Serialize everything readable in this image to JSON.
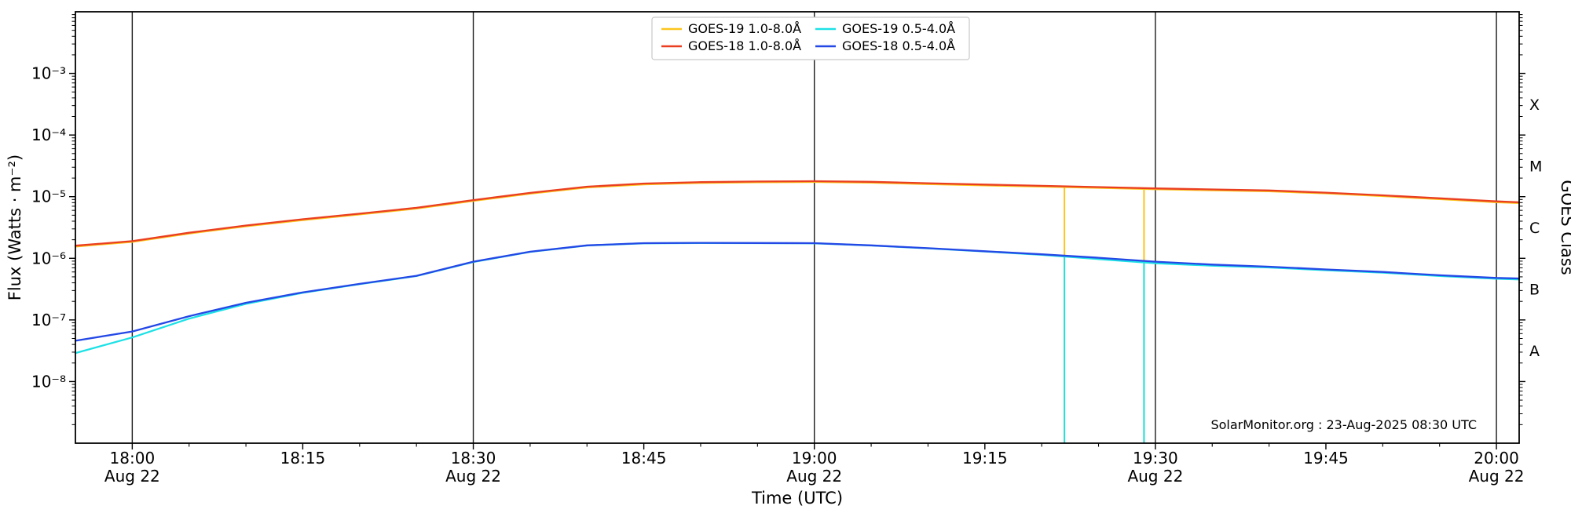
{
  "watermark": "SolarMonitor.org : 23-Aug-2025 08:30 UTC",
  "chart_data": {
    "type": "line",
    "xlabel": "Time (UTC)",
    "ylabel": "Flux (Watts · m⁻²)",
    "ylabel_right": "GOES Class",
    "x_unit": "minutes relative to 18:00 UTC, Aug 22",
    "x_domain": [
      -5,
      122
    ],
    "y_log_domain": [
      -9,
      -2
    ],
    "grid": "vertical lines at 30-minute major ticks",
    "legend_position": "top-center",
    "x_ticks": [
      {
        "t": 0,
        "label": "18:00",
        "date": "Aug 22",
        "grid": true
      },
      {
        "t": 15,
        "label": "18:15"
      },
      {
        "t": 30,
        "label": "18:30",
        "date": "Aug 22",
        "grid": true
      },
      {
        "t": 45,
        "label": "18:45"
      },
      {
        "t": 60,
        "label": "19:00",
        "date": "Aug 22",
        "grid": true
      },
      {
        "t": 75,
        "label": "19:15"
      },
      {
        "t": 90,
        "label": "19:30",
        "date": "Aug 22",
        "grid": true
      },
      {
        "t": 105,
        "label": "19:45"
      },
      {
        "t": 120,
        "label": "20:00",
        "date": "Aug 22",
        "grid": true
      }
    ],
    "y_ticks": [
      {
        "exp": -3,
        "label": "10⁻³"
      },
      {
        "exp": -4,
        "label": "10⁻⁴"
      },
      {
        "exp": -5,
        "label": "10⁻⁵"
      },
      {
        "exp": -6,
        "label": "10⁻⁶"
      },
      {
        "exp": -7,
        "label": "10⁻⁷"
      },
      {
        "exp": -8,
        "label": "10⁻⁸"
      }
    ],
    "goes_classes": [
      {
        "label": "X",
        "log": -3.5
      },
      {
        "label": "M",
        "log": -4.5
      },
      {
        "label": "C",
        "log": -5.5
      },
      {
        "label": "B",
        "log": -6.5
      },
      {
        "label": "A",
        "log": -7.5
      }
    ],
    "series": [
      {
        "id": "goes-19-long",
        "name": "GOES-19 1.0-8.0Å",
        "color": "#fcc51d",
        "points": [
          [
            -5,
            1.55e-06
          ],
          [
            0,
            1.85e-06
          ],
          [
            5,
            2.52e-06
          ],
          [
            10,
            3.3e-06
          ],
          [
            15,
            4.17e-06
          ],
          [
            20,
            5.14e-06
          ],
          [
            25,
            6.4e-06
          ],
          [
            30,
            8.54e-06
          ],
          [
            35,
            1.12e-05
          ],
          [
            40,
            1.41e-05
          ],
          [
            45,
            1.58e-05
          ],
          [
            50,
            1.67e-05
          ],
          [
            55,
            1.71e-05
          ],
          [
            60,
            1.73e-05
          ],
          [
            65,
            1.69e-05
          ],
          [
            70,
            1.6e-05
          ],
          [
            75,
            1.52e-05
          ],
          [
            80,
            1.46e-05
          ],
          [
            85,
            1.39e-05
          ],
          [
            90,
            1.32e-05
          ],
          [
            95,
            1.27e-05
          ],
          [
            100,
            1.22e-05
          ],
          [
            105,
            1.13e-05
          ],
          [
            110,
            1.02e-05
          ],
          [
            115,
            9.1e-06
          ],
          [
            120,
            8.1e-06
          ],
          [
            122,
            7.9e-06
          ]
        ]
      },
      {
        "id": "goes-18-long",
        "name": "GOES-18 1.0-8.0Å",
        "color": "#ea3e20",
        "points": [
          [
            -5,
            1.6e-06
          ],
          [
            0,
            1.9e-06
          ],
          [
            5,
            2.6e-06
          ],
          [
            10,
            3.4e-06
          ],
          [
            15,
            4.3e-06
          ],
          [
            20,
            5.3e-06
          ],
          [
            25,
            6.6e-06
          ],
          [
            30,
            8.8e-06
          ],
          [
            35,
            1.15e-05
          ],
          [
            40,
            1.45e-05
          ],
          [
            45,
            1.63e-05
          ],
          [
            50,
            1.72e-05
          ],
          [
            55,
            1.76e-05
          ],
          [
            60,
            1.78e-05
          ],
          [
            65,
            1.74e-05
          ],
          [
            70,
            1.65e-05
          ],
          [
            75,
            1.57e-05
          ],
          [
            80,
            1.5e-05
          ],
          [
            85,
            1.43e-05
          ],
          [
            90,
            1.36e-05
          ],
          [
            95,
            1.31e-05
          ],
          [
            100,
            1.26e-05
          ],
          [
            105,
            1.16e-05
          ],
          [
            110,
            1.05e-05
          ],
          [
            115,
            9.4e-06
          ],
          [
            120,
            8.4e-06
          ],
          [
            122,
            8.1e-06
          ]
        ]
      },
      {
        "id": "goes-19-short",
        "name": "GOES-19 0.5-4.0Å",
        "color": "#1de1e6",
        "points": [
          [
            -5,
            2.9e-08
          ],
          [
            0,
            5.2e-08
          ],
          [
            5,
            1.05e-07
          ],
          [
            10,
            1.82e-07
          ],
          [
            15,
            2.75e-07
          ],
          [
            20,
            3.8e-07
          ],
          [
            25,
            5.15e-07
          ],
          [
            30,
            8.7e-07
          ],
          [
            35,
            1.27e-06
          ],
          [
            40,
            1.61e-06
          ],
          [
            45,
            1.75e-06
          ],
          [
            50,
            1.77e-06
          ],
          [
            55,
            1.76e-06
          ],
          [
            60,
            1.75e-06
          ],
          [
            65,
            1.61e-06
          ],
          [
            70,
            1.45e-06
          ],
          [
            75,
            1.29e-06
          ],
          [
            80,
            1.14e-06
          ],
          [
            85,
            9.7e-07
          ],
          [
            90,
            8.3e-07
          ],
          [
            95,
            7.6e-07
          ],
          [
            100,
            7.1e-07
          ],
          [
            105,
            6.4e-07
          ],
          [
            110,
            5.85e-07
          ],
          [
            115,
            5.15e-07
          ],
          [
            120,
            4.65e-07
          ],
          [
            122,
            4.55e-07
          ]
        ]
      },
      {
        "id": "goes-18-short",
        "name": "GOES-18 0.5-4.0Å",
        "color": "#2448e6",
        "points": [
          [
            -5,
            4.6e-08
          ],
          [
            0,
            6.5e-08
          ],
          [
            5,
            1.15e-07
          ],
          [
            10,
            1.9e-07
          ],
          [
            15,
            2.8e-07
          ],
          [
            20,
            3.85e-07
          ],
          [
            25,
            5.2e-07
          ],
          [
            30,
            8.8e-07
          ],
          [
            35,
            1.28e-06
          ],
          [
            40,
            1.62e-06
          ],
          [
            45,
            1.76e-06
          ],
          [
            50,
            1.78e-06
          ],
          [
            55,
            1.77e-06
          ],
          [
            60,
            1.76e-06
          ],
          [
            65,
            1.62e-06
          ],
          [
            70,
            1.46e-06
          ],
          [
            75,
            1.3e-06
          ],
          [
            80,
            1.16e-06
          ],
          [
            85,
            1.02e-06
          ],
          [
            90,
            8.8e-07
          ],
          [
            95,
            7.9e-07
          ],
          [
            100,
            7.3e-07
          ],
          [
            105,
            6.6e-07
          ],
          [
            110,
            6e-07
          ],
          [
            115,
            5.3e-07
          ],
          [
            120,
            4.8e-07
          ],
          [
            122,
            4.7e-07
          ]
        ]
      }
    ],
    "dropouts": [
      {
        "t": 82,
        "label": "19:22",
        "series": [
          0,
          2
        ]
      },
      {
        "t": 89,
        "label": "19:29",
        "series": [
          0,
          2
        ]
      }
    ]
  }
}
